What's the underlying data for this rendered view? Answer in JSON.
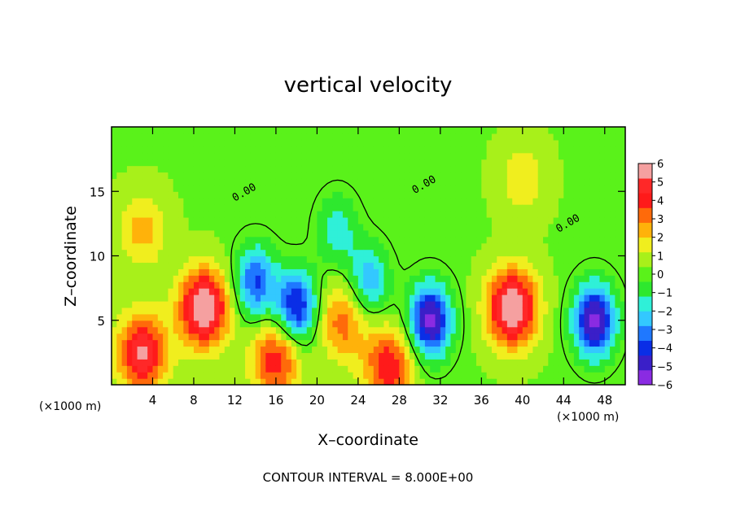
{
  "chart_data": {
    "type": "heatmap",
    "title": "vertical velocity",
    "xlabel": "X–coordinate",
    "ylabel": "Z–coordinate",
    "x_unit_label": "(×1000 m)",
    "z_unit_label": "(×1000 m)",
    "xlim": [
      0,
      50
    ],
    "ylim": [
      0,
      20
    ],
    "x_ticks": [
      4,
      8,
      12,
      16,
      20,
      24,
      28,
      32,
      36,
      40,
      44,
      48
    ],
    "y_ticks": [
      5,
      10,
      15
    ],
    "colorbar": {
      "range": [
        -6,
        6
      ],
      "ticks": [
        6,
        5,
        4,
        3,
        2,
        1,
        0,
        -1,
        -2,
        -3,
        -4,
        -5,
        -6
      ],
      "tick_labels": [
        "6",
        "5",
        "4",
        "3",
        "2",
        "1",
        "0",
        "−1",
        "−2",
        "−3",
        "−4",
        "−5",
        "−6"
      ],
      "colors": [
        "#8a2be2",
        "#3a1fc8",
        "#0a2ee6",
        "#1f78ff",
        "#33c8ff",
        "#2ff0d8",
        "#2ee82e",
        "#5af21a",
        "#a8f01a",
        "#f0ee1e",
        "#ffb20a",
        "#ff6a0a",
        "#ff1a1a",
        "#ff2828",
        "#f5a0a0"
      ]
    },
    "contour_label": "0.00",
    "contour_interval_text": "CONTOUR INTERVAL = 8.000E+00",
    "features": [
      {
        "x": 9,
        "z": 6,
        "w": 6,
        "kind": "updraft"
      },
      {
        "x": 3,
        "z": 2.5,
        "w": 5,
        "kind": "updraft"
      },
      {
        "x": 16,
        "z": 2,
        "w": 4,
        "kind": "updraft"
      },
      {
        "x": 22.5,
        "z": 5,
        "w": 3,
        "kind": "updraft"
      },
      {
        "x": 27,
        "z": 1.5,
        "w": 4,
        "kind": "updraft"
      },
      {
        "x": 39,
        "z": 6,
        "w": 6,
        "kind": "updraft"
      },
      {
        "x": 3,
        "z": 12,
        "w": 2,
        "kind": "updraft"
      },
      {
        "x": 40,
        "z": 16,
        "w": 1.5,
        "kind": "updraft"
      },
      {
        "x": 14,
        "z": 8,
        "w": -4,
        "kind": "downdraft"
      },
      {
        "x": 18,
        "z": 6,
        "w": -5,
        "kind": "downdraft"
      },
      {
        "x": 25,
        "z": 8,
        "w": -3,
        "kind": "downdraft"
      },
      {
        "x": 31,
        "z": 5,
        "w": -6,
        "kind": "downdraft"
      },
      {
        "x": 47,
        "z": 5,
        "w": -6,
        "kind": "downdraft"
      },
      {
        "x": 22,
        "z": 12,
        "w": -2,
        "kind": "downdraft"
      }
    ]
  }
}
